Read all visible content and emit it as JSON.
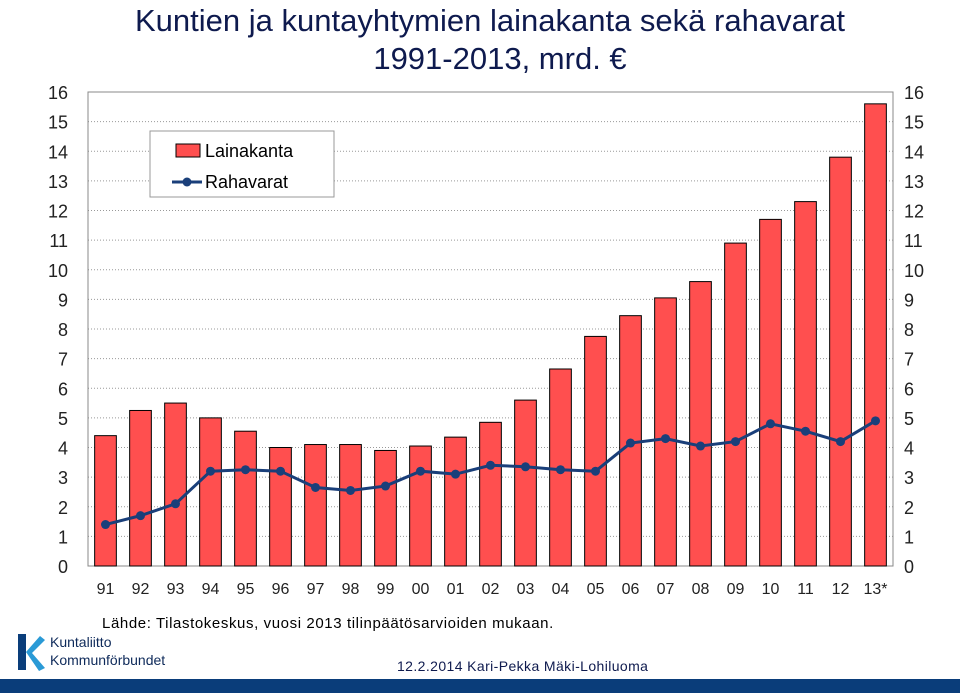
{
  "title_line1": "Kuntien ja kuntayhtymien lainakanta sekä rahavarat",
  "title_line2": "1991-2013, mrd. €",
  "source": "Lähde: Tilastokeskus, vuosi 2013 tilinpäätösarvioiden mukaan.",
  "footer": "12.2.2014 Kari-Pekka Mäki-Lohiluoma",
  "logo": {
    "line1": "Kuntaliitto",
    "line2": "Kommunförbundet"
  },
  "colors": {
    "bar": "#ff4f4f",
    "line": "#1a3f7a",
    "title": "#0e1a4e",
    "brand": "#0a3d7a"
  },
  "chart_data": {
    "type": "bar",
    "categories": [
      "91",
      "92",
      "93",
      "94",
      "95",
      "96",
      "97",
      "98",
      "99",
      "00",
      "01",
      "02",
      "03",
      "04",
      "05",
      "06",
      "07",
      "08",
      "09",
      "10",
      "11",
      "12",
      "13*"
    ],
    "series": [
      {
        "name": "Lainakanta",
        "type": "bar",
        "values": [
          4.4,
          5.25,
          5.5,
          5.0,
          4.55,
          4.0,
          4.1,
          4.1,
          3.9,
          4.05,
          4.35,
          4.85,
          5.6,
          6.65,
          7.75,
          8.45,
          9.05,
          9.6,
          10.9,
          11.7,
          12.3,
          13.8,
          15.6
        ]
      },
      {
        "name": "Rahavarat",
        "type": "line",
        "values": [
          1.4,
          1.7,
          2.1,
          3.2,
          3.25,
          3.2,
          2.65,
          2.55,
          2.7,
          3.2,
          3.1,
          3.4,
          3.35,
          3.25,
          3.2,
          4.15,
          4.3,
          4.05,
          4.2,
          4.8,
          4.55,
          4.2,
          4.9
        ]
      }
    ],
    "ylim": [
      0,
      16
    ],
    "yticks": [
      "0",
      "1",
      "2",
      "3",
      "4",
      "5",
      "6",
      "7",
      "8",
      "9",
      "10",
      "11",
      "12",
      "13",
      "14",
      "15",
      "16"
    ],
    "grid": true,
    "legend_position": "top-left"
  }
}
